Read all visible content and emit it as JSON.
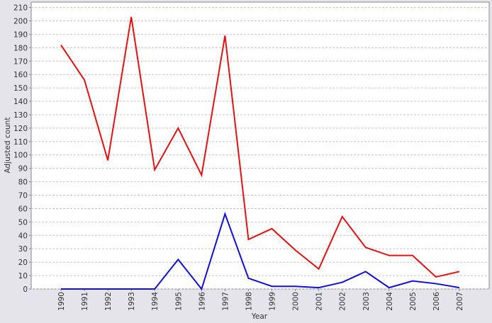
{
  "chart_data": {
    "type": "line",
    "x_label": "Year",
    "y_label": "Adjusted count",
    "categories": [
      "1990",
      "1991",
      "1992",
      "1993",
      "1994",
      "1995",
      "1996",
      "1997",
      "1998",
      "1999",
      "2000",
      "2001",
      "2002",
      "2003",
      "2004",
      "2005",
      "2006",
      "2007"
    ],
    "series": [
      {
        "color": "#e81010",
        "values": [
          182,
          156,
          96,
          203,
          89,
          120,
          85,
          189,
          37,
          45,
          29,
          15,
          54,
          31,
          25,
          25,
          9,
          13
        ]
      },
      {
        "color": "#1010e0",
        "values": [
          0,
          0,
          0,
          0,
          0,
          22,
          0,
          56,
          8,
          2,
          2,
          1,
          5,
          13,
          1,
          6,
          4,
          1
        ]
      }
    ],
    "ylim": [
      0,
      214
    ],
    "yticks": [
      0,
      10,
      20,
      30,
      40,
      50,
      60,
      70,
      80,
      90,
      100,
      110,
      120,
      130,
      140,
      150,
      160,
      170,
      180,
      190,
      200,
      210
    ],
    "grid": true
  }
}
